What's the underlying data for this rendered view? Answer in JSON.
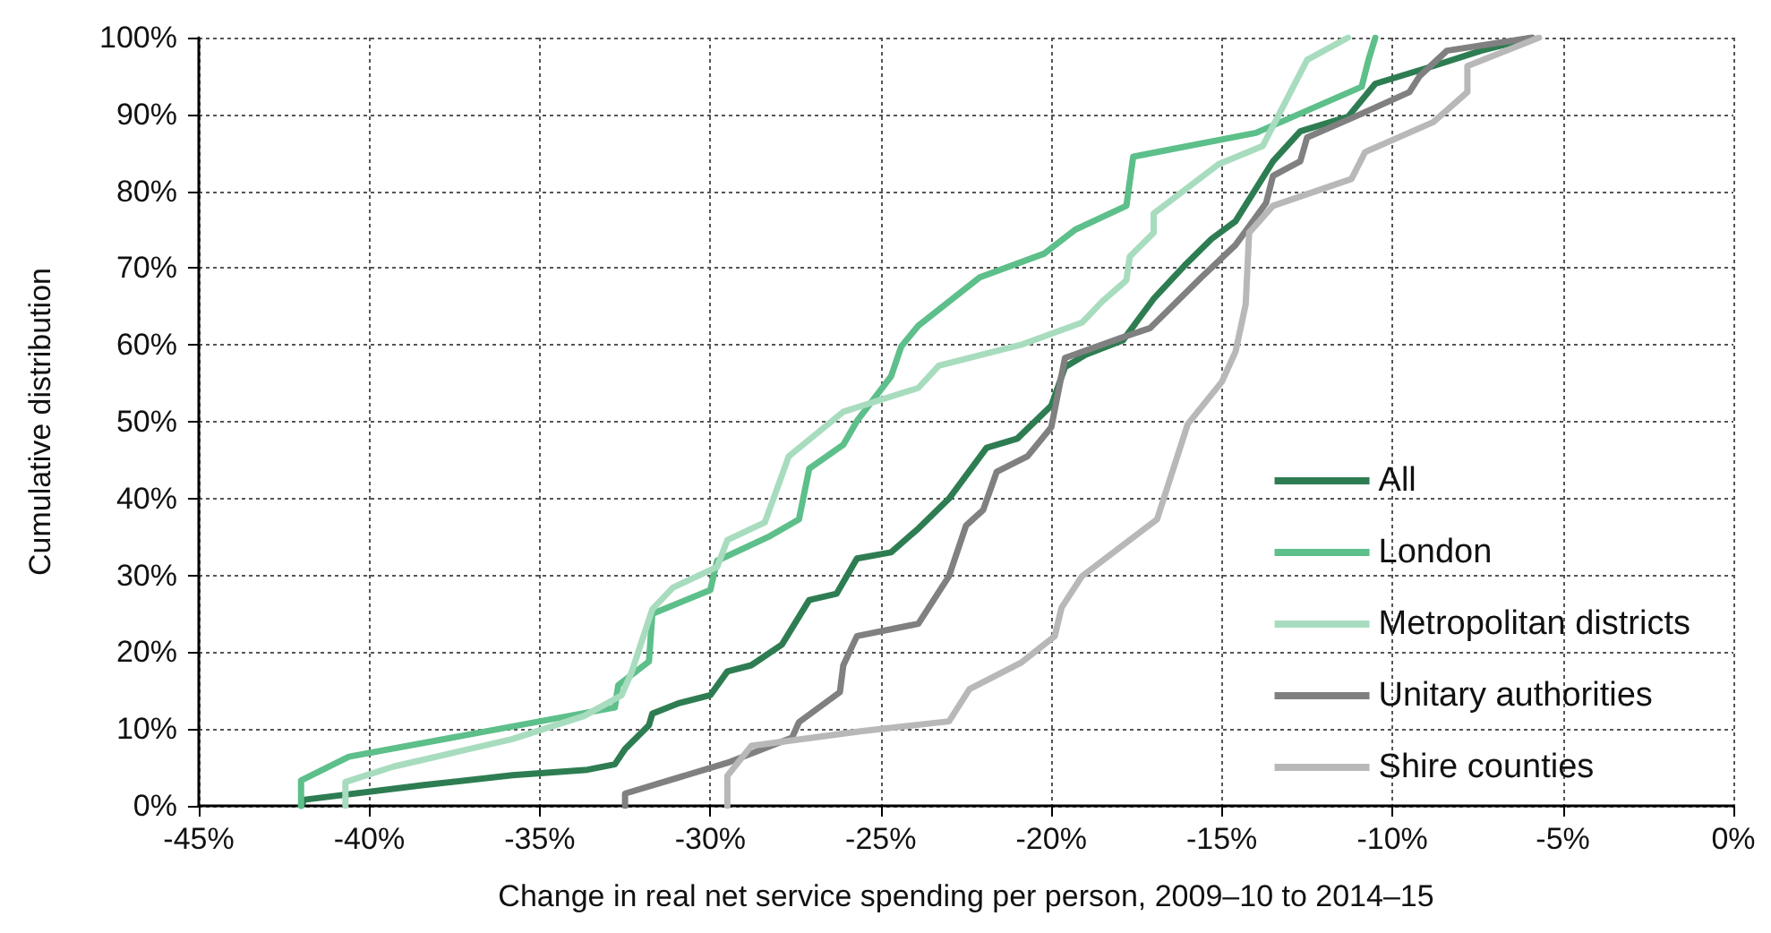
{
  "chart_data": {
    "type": "line",
    "xlabel": "Change in real net service spending per person, 2009–10 to 2014–15",
    "ylabel": "Cumulative distribution",
    "xlim": [
      -45,
      0
    ],
    "ylim": [
      0,
      100
    ],
    "xticks": [
      {
        "value": -45,
        "label": "-45%"
      },
      {
        "value": -40,
        "label": "-40%"
      },
      {
        "value": -35,
        "label": "-35%"
      },
      {
        "value": -30,
        "label": "-30%"
      },
      {
        "value": -25,
        "label": "-25%"
      },
      {
        "value": -20,
        "label": "-20%"
      },
      {
        "value": -15,
        "label": "-15%"
      },
      {
        "value": -10,
        "label": "-10%"
      },
      {
        "value": -5,
        "label": "-5%"
      },
      {
        "value": 0,
        "label": "0%"
      }
    ],
    "yticks": [
      {
        "value": 0,
        "label": "0%"
      },
      {
        "value": 10,
        "label": "10%"
      },
      {
        "value": 20,
        "label": "20%"
      },
      {
        "value": 30,
        "label": "30%"
      },
      {
        "value": 40,
        "label": "40%"
      },
      {
        "value": 50,
        "label": "50%"
      },
      {
        "value": 60,
        "label": "60%"
      },
      {
        "value": 70,
        "label": "70%"
      },
      {
        "value": 80,
        "label": "80%"
      },
      {
        "value": 90,
        "label": "90%"
      },
      {
        "value": 100,
        "label": "100%"
      }
    ],
    "grid": true,
    "legend": "bottom right",
    "marker": "none",
    "line_style": "solid",
    "series": [
      {
        "name": "All",
        "color": "#2e7d52",
        "x": [
          -42.0,
          -41.9,
          -38.4,
          -35.8,
          -33.6,
          -32.8,
          -32.5,
          -31.8,
          -31.7,
          -30.9,
          -30.0,
          -29.5,
          -28.8,
          -27.9,
          -27.1,
          -26.3,
          -25.7,
          -24.7,
          -23.9,
          -23.0,
          -21.9,
          -21.0,
          -20.0,
          -19.6,
          -19.0,
          -17.9,
          -17.0,
          -16.1,
          -15.3,
          -14.6,
          -13.5,
          -12.7,
          -11.3,
          -10.5,
          -8.8,
          -7.4,
          -5.9
        ],
        "values": [
          0,
          0.8,
          2.7,
          4.0,
          4.7,
          5.4,
          7.4,
          10.5,
          12.0,
          13.4,
          14.4,
          17.5,
          18.3,
          21.0,
          26.8,
          27.6,
          32.2,
          33.0,
          36.1,
          40.0,
          46.6,
          47.8,
          52.1,
          57.1,
          58.7,
          60.6,
          66.0,
          70.3,
          73.8,
          76.1,
          83.9,
          87.8,
          89.7,
          94.0,
          96.3,
          98.3,
          100
        ]
      },
      {
        "name": "London",
        "color": "#5dbf8a",
        "x": [
          -42.0,
          -42.0,
          -40.6,
          -32.8,
          -32.7,
          -31.8,
          -31.7,
          -30.0,
          -29.8,
          -28.3,
          -27.4,
          -27.1,
          -26.1,
          -25.7,
          -24.7,
          -24.4,
          -23.9,
          -22.1,
          -20.2,
          -19.3,
          -17.8,
          -17.6,
          -14.0,
          -10.9,
          -10.7,
          -10.5
        ],
        "values": [
          0,
          3.3,
          6.4,
          12.8,
          15.7,
          18.8,
          25.0,
          28.1,
          31.9,
          35.0,
          37.3,
          43.9,
          47.0,
          50.1,
          55.9,
          59.8,
          62.5,
          68.8,
          71.9,
          75.0,
          78.1,
          84.5,
          87.6,
          93.6,
          97.1,
          100
        ]
      },
      {
        "name": "Metropolitan districts",
        "color": "#a8dcbf",
        "x": [
          -40.7,
          -40.7,
          -39.3,
          -35.8,
          -33.7,
          -32.6,
          -32.3,
          -31.7,
          -31.1,
          -29.8,
          -29.5,
          -28.4,
          -27.7,
          -26.1,
          -24.9,
          -23.9,
          -23.3,
          -20.9,
          -19.1,
          -18.5,
          -17.8,
          -17.7,
          -17.0,
          -17.0,
          -15.1,
          -13.8,
          -12.5,
          -11.3
        ],
        "values": [
          0,
          3.1,
          5.1,
          8.7,
          11.7,
          14.4,
          17.5,
          25.6,
          28.4,
          31.1,
          34.6,
          36.9,
          45.5,
          51.3,
          53.0,
          54.4,
          57.3,
          60.0,
          62.9,
          65.7,
          68.4,
          71.5,
          74.6,
          77.1,
          83.5,
          85.9,
          97.1,
          100
        ]
      },
      {
        "name": "Unitary authorities",
        "color": "#808080",
        "x": [
          -32.5,
          -32.5,
          -29.5,
          -27.6,
          -27.4,
          -26.2,
          -26.1,
          -25.7,
          -23.9,
          -23.0,
          -22.5,
          -22.0,
          -21.6,
          -20.7,
          -20.0,
          -19.6,
          -17.9,
          -17.1,
          -15.6,
          -14.6,
          -13.7,
          -13.5,
          -12.7,
          -12.5,
          -11.1,
          -9.5,
          -9.2,
          -8.4,
          -5.9
        ],
        "values": [
          0,
          1.6,
          5.6,
          8.9,
          10.9,
          14.8,
          18.3,
          22.1,
          23.7,
          29.9,
          36.5,
          38.5,
          43.5,
          45.5,
          49.3,
          58.3,
          61.0,
          62.2,
          68.8,
          73.0,
          78.5,
          82.0,
          83.9,
          87.0,
          89.7,
          92.9,
          95.0,
          98.3,
          100
        ]
      },
      {
        "name": "Shire counties",
        "color": "#b8b8b8",
        "x": [
          -29.5,
          -29.5,
          -28.8,
          -25.6,
          -23.0,
          -22.4,
          -20.9,
          -19.9,
          -19.7,
          -19.1,
          -16.9,
          -16.0,
          -15.0,
          -14.6,
          -14.3,
          -14.2,
          -13.5,
          -11.2,
          -10.8,
          -8.8,
          -7.8,
          -7.8,
          -5.7
        ],
        "values": [
          0,
          3.9,
          7.8,
          9.7,
          11.0,
          15.2,
          18.6,
          22.1,
          25.8,
          29.9,
          37.3,
          49.7,
          55.2,
          59.1,
          65.3,
          74.6,
          78.1,
          81.6,
          85.1,
          89.0,
          92.9,
          96.3,
          100
        ]
      }
    ]
  }
}
